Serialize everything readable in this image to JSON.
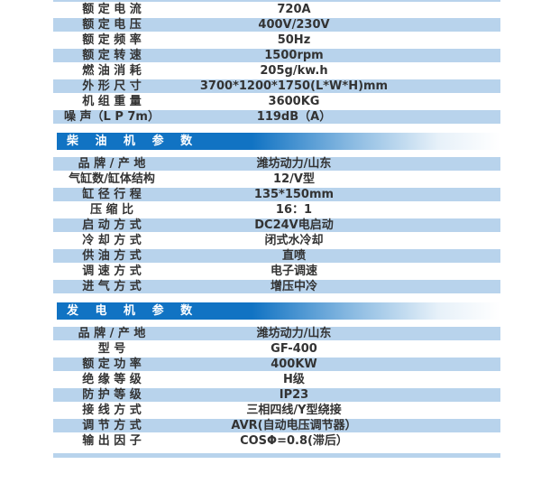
{
  "colors": {
    "row_blue": "#b8d3ec",
    "header_blue": "#1173c3",
    "header_text": "#ffffff",
    "text": "#333333"
  },
  "table": {
    "sections": [
      {
        "header": null,
        "rows": [
          {
            "label": "额 定 电 流",
            "value": "720A"
          },
          {
            "label": "额 定 电 压",
            "value": "400V/230V"
          },
          {
            "label": "额 定 频 率",
            "value": "50Hz"
          },
          {
            "label": "额 定 转 速",
            "value": "1500rpm"
          },
          {
            "label": "燃 油 消 耗",
            "value": "205g/kw.h"
          },
          {
            "label": "外 形 尺 寸",
            "value": "3700*1200*1750(L*W*H)mm"
          },
          {
            "label": "机 组 重 量",
            "value": "3600KG"
          },
          {
            "label": "噪 声（L P 7m）",
            "value": "119dB（A）"
          }
        ]
      },
      {
        "header": "柴 油 机 参 数",
        "rows": [
          {
            "label": "品 牌 / 产 地",
            "value": "潍坊动力/山东"
          },
          {
            "label": "气缸数/缸体结构",
            "value": "12/V型"
          },
          {
            "label": "缸 径 行 程",
            "value": "135*150mm"
          },
          {
            "label": "压 缩 比",
            "value": "16：1"
          },
          {
            "label": "启 动 方 式",
            "value": "DC24V电启动"
          },
          {
            "label": "冷 却 方 式",
            "value": "闭式水冷却"
          },
          {
            "label": "供 油 方 式",
            "value": "直喷"
          },
          {
            "label": "调 速 方 式",
            "value": "电子调速"
          },
          {
            "label": "进 气 方 式",
            "value": "增压中冷"
          }
        ]
      },
      {
        "header": "发 电 机 参 数",
        "rows": [
          {
            "label": "品 牌 / 产 地",
            "value": "潍坊动力/山东"
          },
          {
            "label": "型 号",
            "value": "GF-400"
          },
          {
            "label": "额 定 功 率",
            "value": "400KW"
          },
          {
            "label": "绝 缘 等 级",
            "value": "H级"
          },
          {
            "label": "防 护 等 级",
            "value": "IP23"
          },
          {
            "label": "接 线 方 式",
            "value": "三相四线/Y型绕接"
          },
          {
            "label": "调 节 方 式",
            "value": "AVR(自动电压调节器）"
          },
          {
            "label": "输 出 因 子",
            "value": "COSΦ=0.8(滞后）"
          }
        ]
      }
    ]
  }
}
